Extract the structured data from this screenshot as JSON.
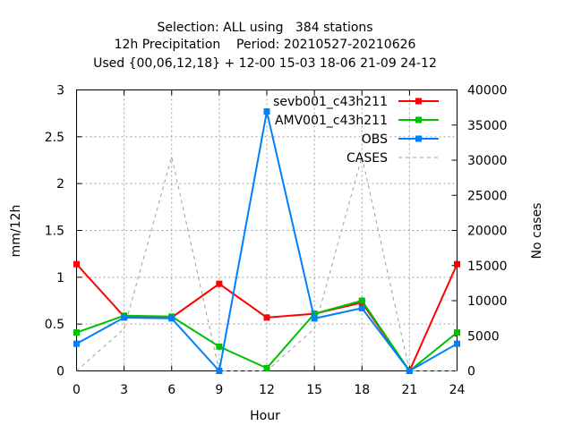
{
  "chart_data": {
    "type": "line",
    "title_lines": [
      "Selection: ALL using   384 stations",
      "12h Precipitation    Period: 20210527-20210626",
      "Used {00,06,12,18} + 12-00 15-03 18-06 21-09 24-12"
    ],
    "xlabel": "Hour",
    "ylabel": "mm/12h",
    "y2label": "No cases",
    "x": [
      0,
      3,
      6,
      9,
      12,
      15,
      18,
      21,
      24
    ],
    "x_ticks": [
      "0",
      "3",
      "6",
      "9",
      "12",
      "15",
      "18",
      "21",
      "24"
    ],
    "xlim": [
      0,
      24
    ],
    "ylim": [
      0,
      3
    ],
    "y_ticks": [
      "0",
      "0.5",
      "1",
      "1.5",
      "2",
      "2.5",
      "3"
    ],
    "y2lim": [
      0,
      40000
    ],
    "y2_ticks": [
      "0",
      "5000",
      "10000",
      "15000",
      "20000",
      "25000",
      "30000",
      "35000",
      "40000"
    ],
    "grid": true,
    "legend_position": "top-right",
    "series": [
      {
        "name": "sevb001_c43h211",
        "color": "#ff0000",
        "axis": "y",
        "values": [
          1.14,
          0.58,
          0.57,
          0.93,
          0.57,
          0.61,
          0.73,
          0.0,
          1.14
        ]
      },
      {
        "name": "AMV001_c43h211",
        "color": "#00c000",
        "axis": "y",
        "values": [
          0.41,
          0.59,
          0.58,
          0.26,
          0.03,
          0.61,
          0.75,
          0.0,
          0.41
        ]
      },
      {
        "name": "OBS",
        "color": "#0080ff",
        "axis": "y",
        "values": [
          0.29,
          0.57,
          0.56,
          0.0,
          2.77,
          0.56,
          0.67,
          0.0,
          0.29
        ]
      },
      {
        "name": "CASES",
        "color": "#a0a0a0",
        "axis": "y2",
        "dashed": true,
        "values": [
          0,
          6000,
          30500,
          0,
          0,
          6000,
          30500,
          0,
          0
        ]
      }
    ]
  }
}
